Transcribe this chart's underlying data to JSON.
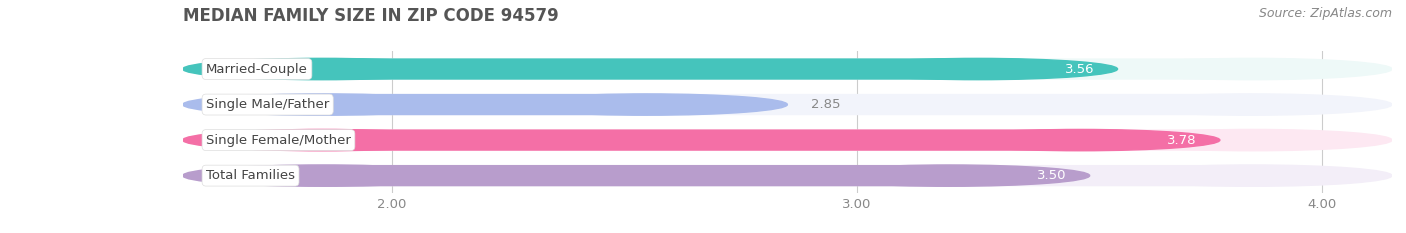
{
  "title": "MEDIAN FAMILY SIZE IN ZIP CODE 94579",
  "source": "Source: ZipAtlas.com",
  "categories": [
    "Married-Couple",
    "Single Male/Father",
    "Single Female/Mother",
    "Total Families"
  ],
  "values": [
    3.56,
    2.85,
    3.78,
    3.5
  ],
  "bar_colors": [
    "#45C4BC",
    "#AABCEC",
    "#F46FA6",
    "#B89DCC"
  ],
  "bar_bg_colors": [
    "#EEF9F8",
    "#F2F4FB",
    "#FDE8F2",
    "#F3EEF8"
  ],
  "xlim": [
    1.55,
    4.15
  ],
  "xstart": 1.55,
  "xticks": [
    2.0,
    3.0,
    4.0
  ],
  "xtick_labels": [
    "2.00",
    "3.00",
    "4.00"
  ],
  "title_fontsize": 12,
  "source_fontsize": 9,
  "bar_label_fontsize": 9.5,
  "tick_fontsize": 9.5,
  "category_fontsize": 9.5,
  "background_color": "#ffffff"
}
